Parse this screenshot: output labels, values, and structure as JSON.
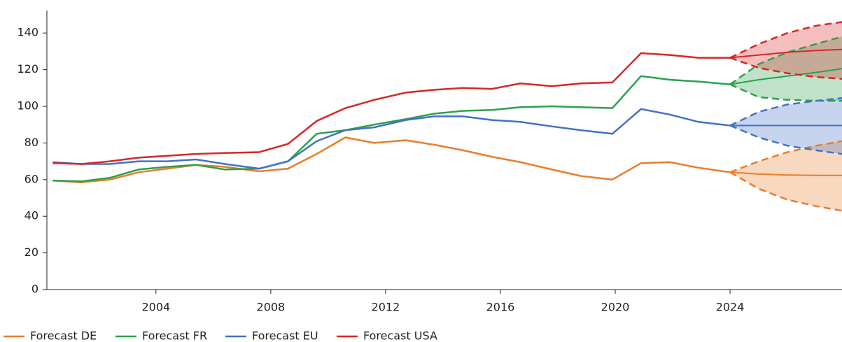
{
  "chart_data": {
    "type": "line",
    "x": [
      2000.4,
      2001.4,
      2002.4,
      2003.4,
      2004.4,
      2005.4,
      2006.4,
      2007.6,
      2008.6,
      2009.6,
      2010.6,
      2011.6,
      2012.7,
      2013.7,
      2014.7,
      2015.7,
      2016.7,
      2017.8,
      2018.8,
      2019.9,
      2020.9,
      2021.9,
      2022.9,
      2024.0
    ],
    "forecast_x": [
      2024,
      2025,
      2026,
      2027,
      2027.9
    ],
    "series": [
      {
        "name": "Forecast DE",
        "color": "#e87d2c",
        "values": [
          59.5,
          58.5,
          60,
          64,
          66,
          68,
          67,
          64.5,
          66,
          74,
          83,
          80,
          81.5,
          79,
          76,
          72.5,
          69.5,
          65.5,
          62,
          60,
          69,
          69.5,
          66.5,
          64
        ],
        "forecast": [
          64,
          63,
          62.5,
          62.3,
          62.3
        ],
        "upper": [
          64,
          70,
          75,
          78.5,
          81
        ],
        "lower": [
          64,
          55,
          49,
          45.5,
          43
        ]
      },
      {
        "name": "Forecast FR",
        "color": "#2ca04c",
        "values": [
          59.5,
          59,
          61,
          65.5,
          67,
          68,
          65.5,
          66,
          70,
          85,
          87,
          90,
          93,
          96,
          97.5,
          98,
          99.5,
          100,
          99.5,
          99,
          116.5,
          114.5,
          113.5,
          112
        ],
        "forecast": [
          112,
          114.5,
          116.5,
          118.5,
          120.5
        ],
        "upper": [
          112,
          123,
          129.5,
          134,
          138
        ],
        "lower": [
          112,
          105,
          103.5,
          103,
          103
        ]
      },
      {
        "name": "Forecast EU",
        "color": "#4472c4",
        "values": [
          69.5,
          68.5,
          68.5,
          70,
          70,
          71,
          68.5,
          66,
          70,
          81,
          87,
          88.5,
          92.5,
          94.5,
          94.5,
          92.5,
          91.5,
          89,
          87,
          85,
          98.5,
          95.5,
          91.5,
          89.5
        ],
        "forecast": [
          89.5,
          89.5,
          89.5,
          89.5,
          89.5
        ],
        "upper": [
          89.5,
          97,
          101,
          103,
          104.5
        ],
        "lower": [
          89.5,
          83,
          78.5,
          76,
          74
        ]
      },
      {
        "name": "Forecast USA",
        "color": "#d62728",
        "values": [
          69,
          68.5,
          70,
          72,
          73,
          74,
          74.5,
          75,
          79.5,
          92,
          99,
          103.5,
          107.5,
          109,
          110,
          109.5,
          112.5,
          111,
          112.5,
          113,
          129,
          128,
          126.5,
          126.5
        ],
        "forecast": [
          126.5,
          128,
          129.5,
          130.5,
          131
        ],
        "upper": [
          126.5,
          134,
          140,
          144,
          146
        ],
        "lower": [
          126.5,
          121,
          118,
          116,
          115
        ]
      }
    ],
    "xlim": [
      2000.2,
      2027.9
    ],
    "ylim": [
      0,
      150
    ],
    "xticks": [
      2004,
      2008,
      2012,
      2016,
      2020,
      2024
    ],
    "yticks": [
      0,
      20,
      40,
      60,
      80,
      100,
      120,
      140
    ],
    "band_opacity": 0.3
  }
}
